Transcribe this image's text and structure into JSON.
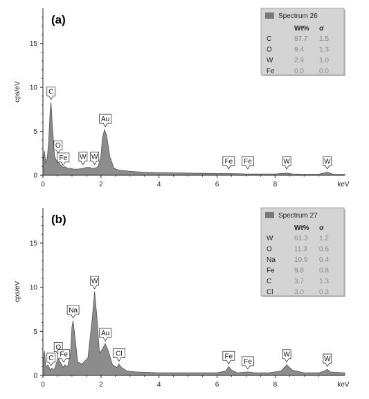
{
  "chart_data": [
    {
      "type": "area",
      "panel_label": "(a)",
      "ylabel": "cps/eV",
      "xunit": "keV",
      "xlim": [
        0,
        10.4
      ],
      "ylim": [
        0,
        19
      ],
      "xticks": [
        0,
        2,
        4,
        6,
        8
      ],
      "yticks": [
        0,
        5,
        10,
        15
      ],
      "fill_color": "#8c8c8c",
      "spectrum": {
        "x": [
          0.0,
          0.05,
          0.1,
          0.15,
          0.2,
          0.25,
          0.28,
          0.32,
          0.4,
          0.5,
          0.52,
          0.6,
          0.7,
          0.75,
          0.85,
          0.95,
          1.05,
          1.2,
          1.4,
          1.5,
          1.6,
          1.7,
          1.8,
          1.9,
          2.0,
          2.05,
          2.12,
          2.2,
          2.3,
          2.45,
          2.6,
          3.0,
          3.5,
          4.0,
          5.0,
          6.0,
          6.4,
          6.5,
          7.0,
          7.5,
          8.0,
          8.4,
          8.6,
          9.0,
          9.5,
          9.8,
          10.0,
          10.4
        ],
        "y": [
          1.5,
          2.8,
          1.4,
          2.0,
          4.0,
          7.5,
          8.3,
          6.0,
          2.2,
          1.4,
          1.6,
          1.2,
          0.9,
          1.0,
          0.8,
          0.8,
          0.7,
          0.7,
          0.8,
          0.9,
          0.9,
          0.8,
          0.8,
          1.0,
          2.2,
          4.2,
          5.2,
          4.5,
          2.2,
          0.8,
          0.6,
          0.45,
          0.35,
          0.3,
          0.25,
          0.2,
          0.2,
          0.2,
          0.15,
          0.15,
          0.15,
          0.25,
          0.15,
          0.12,
          0.12,
          0.35,
          0.12,
          0.1
        ]
      },
      "peak_labels": [
        {
          "text": "C",
          "x": 0.28,
          "y": 8.3
        },
        {
          "text": "O",
          "x": 0.52,
          "y": 2.2
        },
        {
          "text": "Fe",
          "x": 0.7,
          "y": 0.8
        },
        {
          "text": "W",
          "x": 1.38,
          "y": 0.9
        },
        {
          "text": "W",
          "x": 1.78,
          "y": 0.9
        },
        {
          "text": "Au",
          "x": 2.15,
          "y": 5.2
        },
        {
          "text": "Fe",
          "x": 6.4,
          "y": 0.4
        },
        {
          "text": "Fe",
          "x": 7.06,
          "y": 0.4
        },
        {
          "text": "W",
          "x": 8.4,
          "y": 0.4
        },
        {
          "text": "W",
          "x": 9.8,
          "y": 0.4
        }
      ],
      "legend": {
        "title": "Spectrum 26",
        "col_wt": "Wt%",
        "col_sigma": "σ",
        "rows": [
          {
            "element": "C",
            "wt": "87.7",
            "sigma": "1.5"
          },
          {
            "element": "O",
            "wt": "9.4",
            "sigma": "1.3"
          },
          {
            "element": "W",
            "wt": "2.9",
            "sigma": "1.0"
          },
          {
            "element": "Fe",
            "wt": "0.0",
            "sigma": "0.0"
          }
        ]
      }
    },
    {
      "type": "area",
      "panel_label": "(b)",
      "ylabel": "cps/eV",
      "xunit": "keV",
      "xlim": [
        0,
        10.4
      ],
      "ylim": [
        0,
        19
      ],
      "xticks": [
        0,
        2,
        4,
        6,
        8
      ],
      "yticks": [
        0,
        5,
        10,
        15
      ],
      "fill_color": "#8c8c8c",
      "spectrum": {
        "x": [
          0.0,
          0.05,
          0.1,
          0.18,
          0.26,
          0.3,
          0.4,
          0.52,
          0.6,
          0.7,
          0.75,
          0.85,
          0.95,
          1.0,
          1.04,
          1.1,
          1.2,
          1.35,
          1.55,
          1.7,
          1.78,
          1.85,
          1.95,
          2.05,
          2.15,
          2.25,
          2.4,
          2.55,
          2.62,
          2.7,
          2.9,
          3.2,
          3.6,
          4.0,
          5.0,
          6.0,
          6.3,
          6.4,
          6.5,
          6.7,
          7.06,
          7.3,
          7.8,
          8.2,
          8.4,
          8.6,
          9.0,
          9.5,
          9.7,
          9.8,
          9.9,
          10.4
        ],
        "y": [
          1.0,
          2.8,
          1.0,
          1.2,
          0.6,
          0.8,
          0.7,
          2.0,
          1.5,
          0.9,
          1.2,
          1.0,
          2.5,
          5.5,
          6.2,
          4.5,
          1.5,
          1.3,
          2.0,
          6.5,
          9.5,
          7.0,
          2.5,
          3.0,
          3.6,
          2.8,
          1.2,
          0.9,
          1.3,
          0.9,
          0.5,
          0.4,
          0.35,
          0.3,
          0.3,
          0.3,
          0.5,
          1.0,
          0.6,
          0.3,
          0.4,
          0.3,
          0.3,
          0.5,
          1.2,
          0.6,
          0.3,
          0.3,
          0.5,
          0.7,
          0.4,
          0.3
        ]
      },
      "peak_labels": [
        {
          "text": "C",
          "x": 0.28,
          "y": 0.8
        },
        {
          "text": "O",
          "x": 0.53,
          "y": 2.0
        },
        {
          "text": "Fe",
          "x": 0.72,
          "y": 1.2
        },
        {
          "text": "Na",
          "x": 1.04,
          "y": 6.2
        },
        {
          "text": "W",
          "x": 1.78,
          "y": 9.5
        },
        {
          "text": "Au",
          "x": 2.15,
          "y": 3.6
        },
        {
          "text": "Cl",
          "x": 2.62,
          "y": 1.3
        },
        {
          "text": "Fe",
          "x": 6.4,
          "y": 1.0
        },
        {
          "text": "Fe",
          "x": 7.06,
          "y": 0.4
        },
        {
          "text": "W",
          "x": 8.4,
          "y": 1.2
        },
        {
          "text": "W",
          "x": 9.8,
          "y": 0.7
        }
      ],
      "legend": {
        "title": "Spectrum 27",
        "col_wt": "Wt%",
        "col_sigma": "σ",
        "rows": [
          {
            "element": "W",
            "wt": "61.3",
            "sigma": "1.2"
          },
          {
            "element": "O",
            "wt": "11.3",
            "sigma": "0.6"
          },
          {
            "element": "Na",
            "wt": "10.9",
            "sigma": "0.4"
          },
          {
            "element": "Fe",
            "wt": "9.8",
            "sigma": "0.8"
          },
          {
            "element": "C",
            "wt": "3.7",
            "sigma": "1.3"
          },
          {
            "element": "Cl",
            "wt": "3.0",
            "sigma": "0.3"
          }
        ]
      }
    }
  ]
}
